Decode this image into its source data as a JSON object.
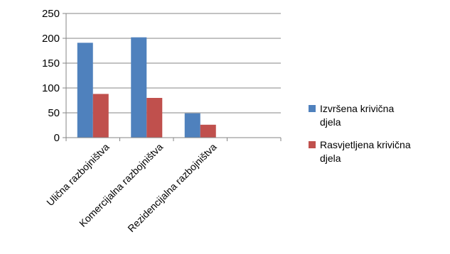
{
  "chart_data": {
    "type": "bar",
    "categories": [
      "Ulična razbojništva",
      "Komercijalna razbojništva",
      "Rezidencijalna razbojništva",
      ""
    ],
    "series": [
      {
        "name": "Izvršena krivična djela",
        "legend_lines": [
          "Izvršena krivična",
          "djela"
        ],
        "values": [
          191,
          202,
          49,
          null
        ],
        "color": "#4F81BD"
      },
      {
        "name": "Rasvjetljena krivična djela",
        "legend_lines": [
          "Rasvjetljena krivična",
          "djela"
        ],
        "values": [
          88,
          80,
          26,
          null
        ],
        "color": "#C0504D"
      }
    ],
    "ylim": [
      0,
      250
    ],
    "yticks": [
      0,
      50,
      100,
      150,
      200,
      250
    ],
    "grid": true,
    "legend": "right",
    "title": "",
    "xlabel": "",
    "ylabel": ""
  }
}
